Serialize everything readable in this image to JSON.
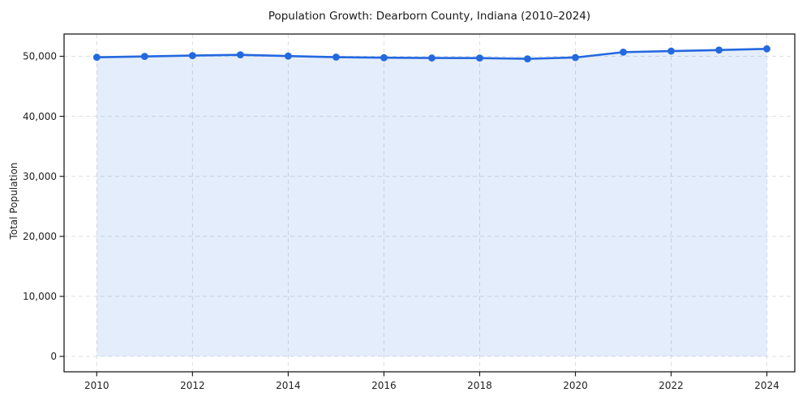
{
  "chart_data": {
    "type": "area",
    "title": "Population Growth: Dearborn County, Indiana (2010–2024)",
    "xlabel": "",
    "ylabel": "Total Population",
    "series_name": "Total Population",
    "x": [
      2010,
      2011,
      2012,
      2013,
      2014,
      2015,
      2016,
      2017,
      2018,
      2019,
      2020,
      2021,
      2022,
      2023,
      2024
    ],
    "values": [
      49840,
      49980,
      50120,
      50250,
      50040,
      49860,
      49770,
      49720,
      49710,
      49580,
      49800,
      50690,
      50870,
      51040,
      51240
    ],
    "x_ticks": [
      2010,
      2012,
      2014,
      2016,
      2018,
      2020,
      2022,
      2024
    ],
    "x_tick_labels": [
      "2010",
      "2012",
      "2014",
      "2016",
      "2018",
      "2020",
      "2022",
      "2024"
    ],
    "y_ticks": [
      0,
      10000,
      20000,
      30000,
      40000,
      50000
    ],
    "y_tick_labels": [
      "0",
      "10,000",
      "20,000",
      "30,000",
      "40,000",
      "50,000"
    ],
    "xlim": [
      2009.3,
      2024.6
    ],
    "ylim": [
      0,
      50000
    ],
    "grid": true,
    "legend": "none",
    "colors": {
      "line": "#2368df",
      "marker": "#2368df",
      "fill": "#2368df",
      "fill_opacity": 0.12,
      "grid": "#dadee3",
      "spine": "#1c1c1c",
      "text": "#1f1f1f",
      "background": "#ffffff"
    }
  }
}
